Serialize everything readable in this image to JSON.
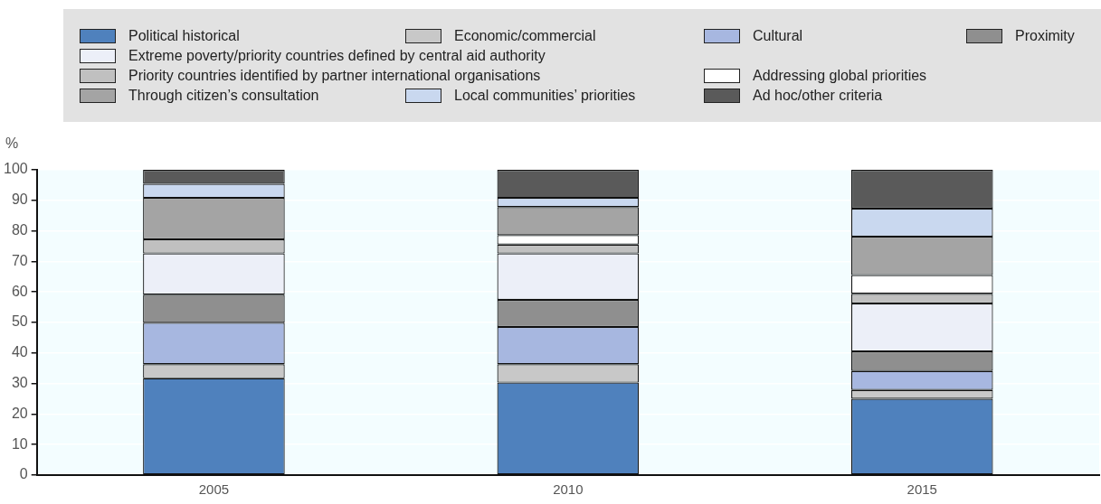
{
  "chart_data": {
    "type": "bar",
    "stacked": true,
    "ylabel": "%",
    "categories": [
      "2005",
      "2010",
      "2015"
    ],
    "series": [
      {
        "name": "Political historical",
        "color": "#4f81bd",
        "values": [
          31.7,
          30.3,
          25.0
        ]
      },
      {
        "name": "Economic/commercial",
        "color": "#c8c8c8",
        "values": [
          4.6,
          6.0,
          2.9
        ]
      },
      {
        "name": "Cultural",
        "color": "#a7b7e0",
        "values": [
          13.6,
          12.2,
          6.2
        ]
      },
      {
        "name": "Proximity",
        "color": "#8f8f8f",
        "values": [
          9.2,
          8.9,
          6.4
        ]
      },
      {
        "name": "Extreme poverty/priority countries defined by central aid authority",
        "color": "#eceff8",
        "values": [
          13.5,
          15.2,
          15.7
        ]
      },
      {
        "name": "Priority countries identified by partner international organisations",
        "color": "#c0c0c0",
        "values": [
          4.6,
          2.9,
          3.2
        ]
      },
      {
        "name": "Addressing global priorities",
        "color": "#ffffff",
        "values": [
          0,
          3.1,
          6.1
        ]
      },
      {
        "name": "Through citizen’s consultation",
        "color": "#a4a4a4",
        "values": [
          13.6,
          9.2,
          12.6
        ]
      },
      {
        "name": "Local communities’ priorities",
        "color": "#c9d8ef",
        "values": [
          4.6,
          3.0,
          9.2
        ]
      },
      {
        "name": "Ad hoc/other criteria",
        "color": "#5a5a5a",
        "values": [
          4.6,
          9.2,
          12.7
        ]
      }
    ],
    "ylim": [
      0,
      100
    ],
    "yticks": [
      0,
      10,
      20,
      30,
      40,
      50,
      60,
      70,
      80,
      90,
      100
    ],
    "grid": "y",
    "legend": "top"
  }
}
